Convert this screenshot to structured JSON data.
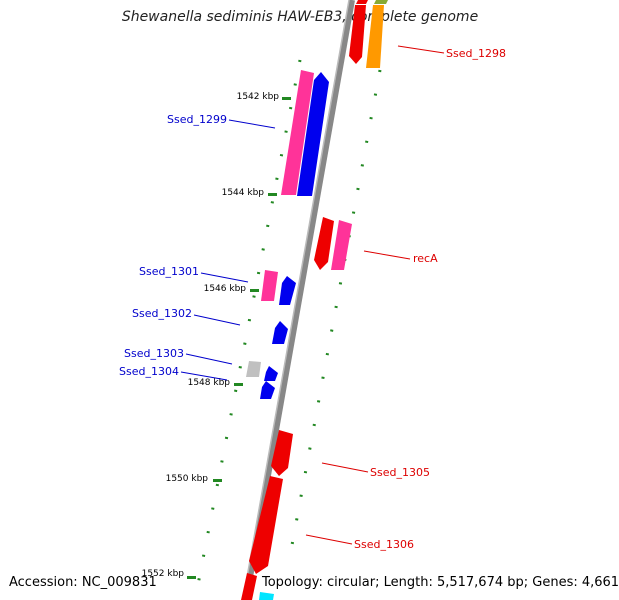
{
  "title": "Shewanella sediminis HAW-EB3, complete genome",
  "accession": "Accession: NC_009831",
  "topology": "Topology: circular; Length: 5,517,674 bp; Genes: 4,661",
  "colors": {
    "red": "#ee0000",
    "pink": "#ff3399",
    "blue": "#0000ee",
    "orange": "#ff9900",
    "grey": "#c0c0c0",
    "cyan": "#00e5ff",
    "olive": "#88aa33",
    "green_ticks": "#228822",
    "backbone": "#888888",
    "label_red": "#dd0000",
    "label_blue": "#0000cc"
  },
  "kbp_labels": [
    "1542 kbp",
    "1544 kbp",
    "1546 kbp",
    "1548 kbp",
    "1550 kbp",
    "1552 kbp"
  ],
  "gene_labels": [
    {
      "text": "Ssed_1298",
      "strand": "forward"
    },
    {
      "text": "Ssed_1299",
      "strand": "reverse"
    },
    {
      "text": "recA",
      "strand": "forward"
    },
    {
      "text": "Ssed_1301",
      "strand": "reverse"
    },
    {
      "text": "Ssed_1302",
      "strand": "reverse"
    },
    {
      "text": "Ssed_1303",
      "strand": "reverse"
    },
    {
      "text": "Ssed_1304",
      "strand": "reverse"
    },
    {
      "text": "Ssed_1305",
      "strand": "forward"
    },
    {
      "text": "Ssed_1306",
      "strand": "forward"
    }
  ]
}
